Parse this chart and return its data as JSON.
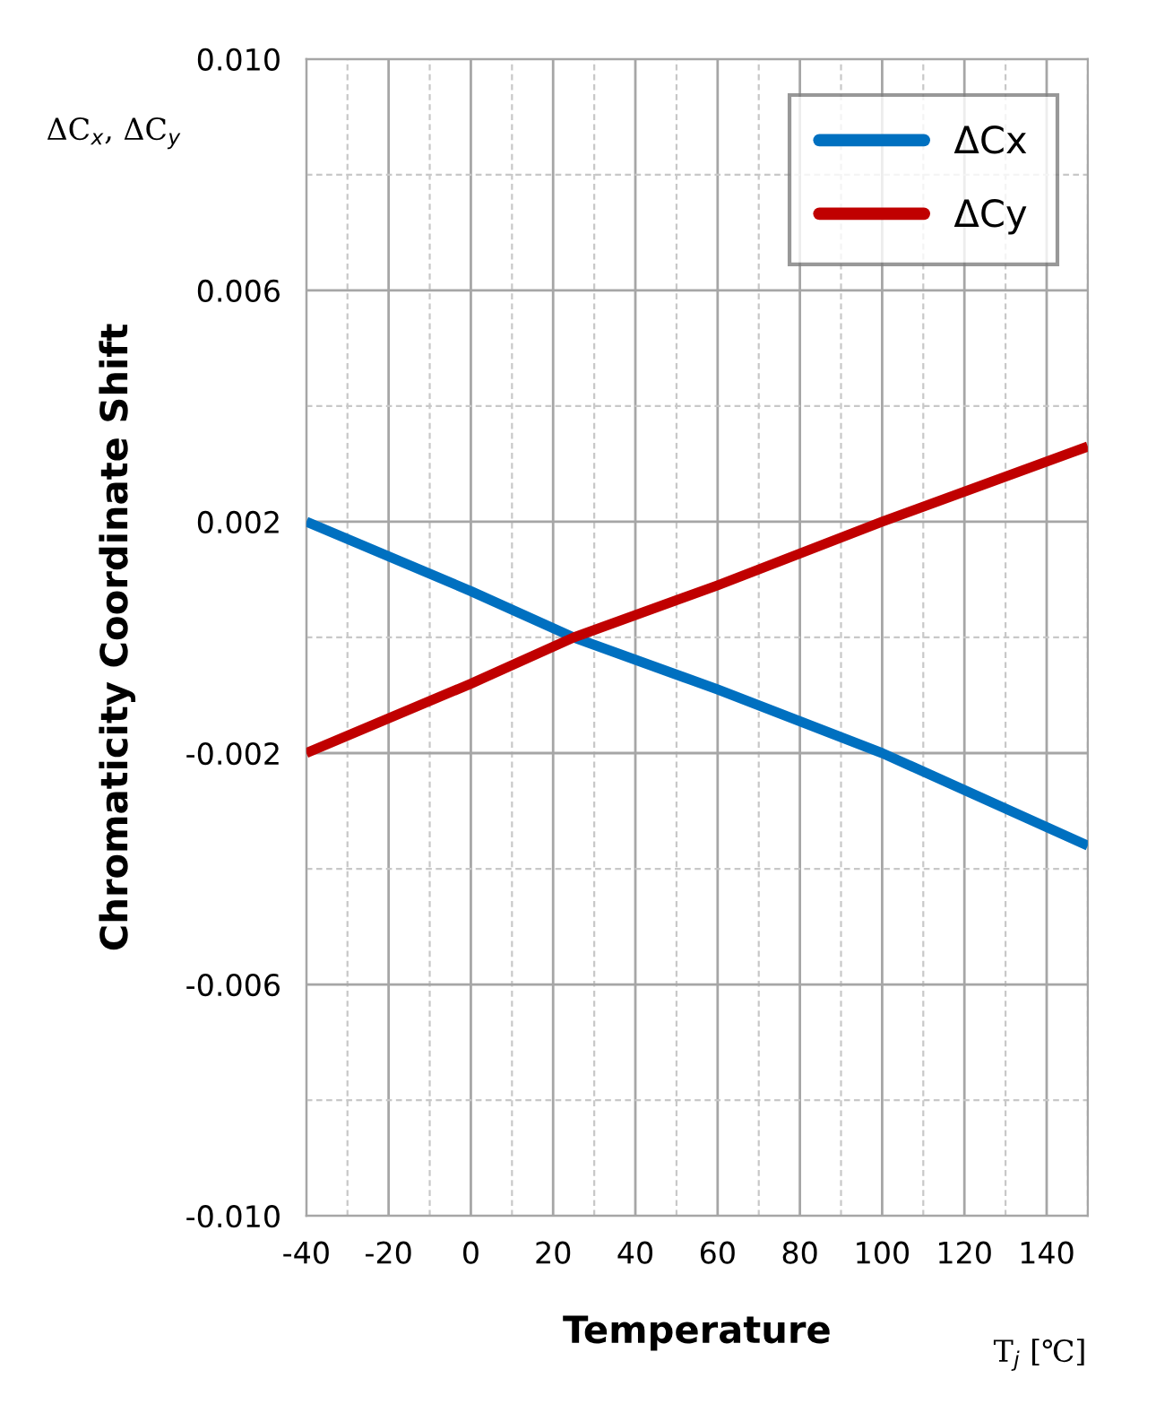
{
  "chart_data": {
    "type": "line",
    "xlabel": "Temperature",
    "ylabel": "Chromaticity Coordinate Shift",
    "x": [
      -40,
      0,
      25,
      60,
      100,
      150
    ],
    "series": [
      {
        "name": "ΔCx",
        "color": "#0070c0",
        "values": [
          0.002,
          0.0008,
          0.0,
          -0.0009,
          -0.002,
          -0.0036
        ]
      },
      {
        "name": "ΔCy",
        "color": "#c00000",
        "values": [
          -0.002,
          -0.0008,
          0.0,
          0.0009,
          0.002,
          0.0033
        ]
      }
    ],
    "xlim": [
      -40,
      150
    ],
    "xticks": [
      -40,
      -20,
      0,
      20,
      40,
      60,
      80,
      100,
      120,
      140,
      {
        "value": -30,
        "label": null
      },
      {
        "value": -10,
        "label": null
      },
      {
        "value": 10,
        "label": null
      },
      {
        "value": 30,
        "label": null
      },
      {
        "value": 50,
        "label": null
      },
      {
        "value": 70,
        "label": null
      },
      {
        "value": 90,
        "label": null
      },
      {
        "value": 110,
        "label": null
      },
      {
        "value": 130,
        "label": null
      },
      {
        "value": 150,
        "label": null
      }
    ],
    "ylim": [
      -0.01,
      0.01
    ],
    "yticks": [
      {
        "value": 0.01,
        "label": "0.010"
      },
      0.006,
      0.002,
      -0.002,
      -0.006,
      {
        "value": -0.01,
        "label": "-0.010"
      },
      {
        "value": 0.008,
        "label": null
      },
      {
        "value": 0.004,
        "label": null
      },
      {
        "value": 0,
        "label": null
      },
      {
        "value": -0.004,
        "label": null
      },
      {
        "value": -0.008,
        "label": null
      }
    ],
    "grid": true,
    "legend": "top right",
    "marker": "none",
    "line_style": "solid",
    "annotations": [
      "ΔC$_{x}$, ΔC$_{y}$",
      "T$_{j}$ [℃]"
    ]
  }
}
